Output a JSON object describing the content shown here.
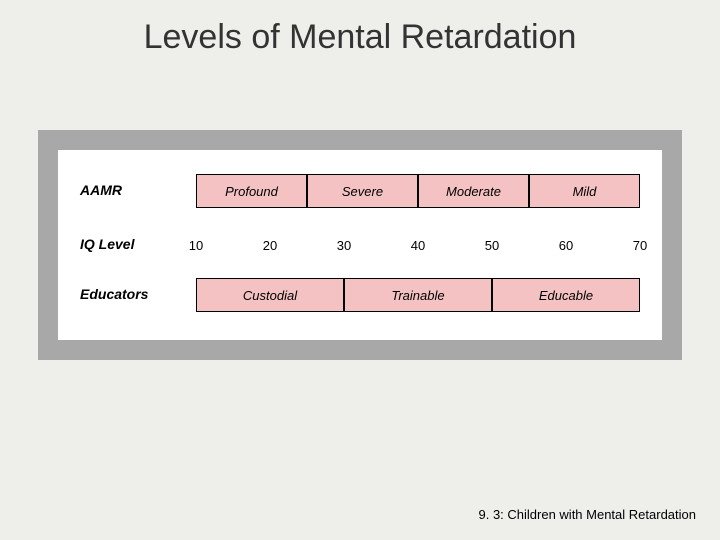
{
  "title": "Levels of Mental Retardation",
  "footer": "9. 3: Children with Mental Retardation",
  "rowLabels": {
    "aamr": "AAMR",
    "iq": "IQ Level",
    "educators": "Educators"
  },
  "scale": {
    "start": 10,
    "end": 70,
    "leftPx": 138,
    "rightPx": 582,
    "ticks": [
      10,
      20,
      30,
      40,
      50,
      60,
      70
    ]
  },
  "aamr": {
    "topPx": 24,
    "heightPx": 34,
    "cells": [
      {
        "label": "Profound",
        "from": 10,
        "to": 25
      },
      {
        "label": "Severe",
        "from": 25,
        "to": 40
      },
      {
        "label": "Moderate",
        "from": 40,
        "to": 55
      },
      {
        "label": "Mild",
        "from": 55,
        "to": 70
      }
    ]
  },
  "educators": {
    "topPx": 128,
    "heightPx": 34,
    "cells": [
      {
        "label": "Custodial",
        "from": 10,
        "to": 30
      },
      {
        "label": "Trainable",
        "from": 30,
        "to": 50
      },
      {
        "label": "Educable",
        "from": 50,
        "to": 70
      }
    ]
  },
  "colors": {
    "pageBg": "#eeeeea",
    "frameBg": "#a8a8a8",
    "innerBg": "#ffffff",
    "cellFill": "#f4c2c2",
    "cellBorder": "#000000",
    "text": "#000000"
  }
}
